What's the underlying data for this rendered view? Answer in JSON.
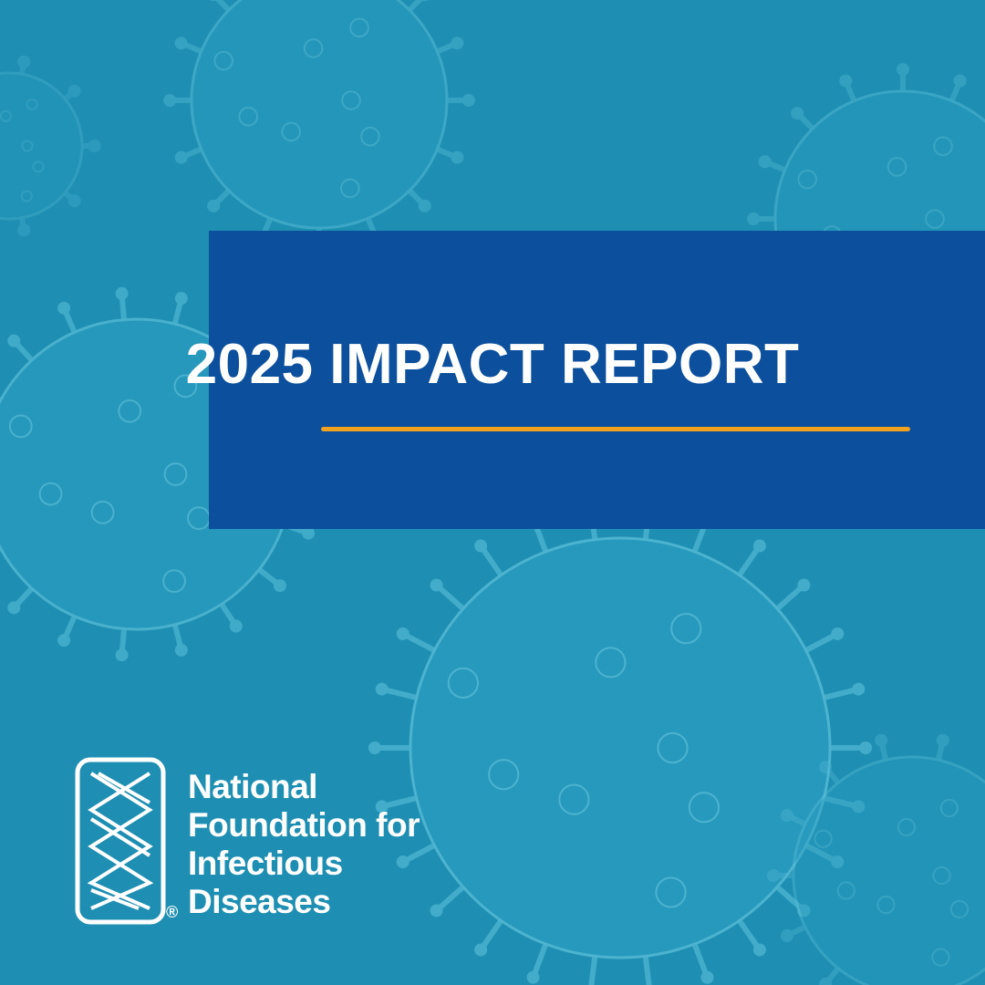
{
  "title": "2025 IMPACT REPORT",
  "organization": {
    "name_lines": [
      "National",
      "Foundation for",
      "Infectious",
      "Diseases"
    ],
    "registered_mark": "®"
  },
  "colors": {
    "background": "#1e8fb2",
    "banner": "#0b4f9d",
    "accent_rule": "#f0a11e",
    "text": "#ffffff"
  },
  "icons": {
    "background": "virus-particles-illustration",
    "logo": "dna-double-helix-logo"
  }
}
